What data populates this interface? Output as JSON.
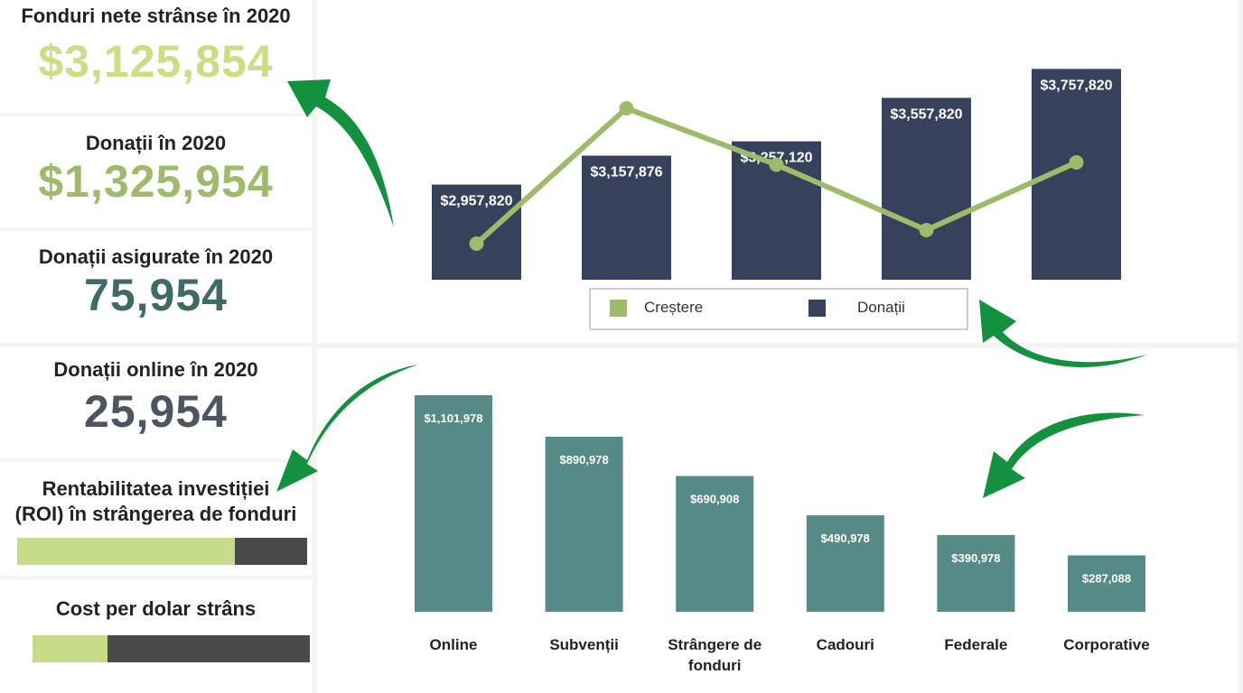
{
  "kpis": {
    "net_funds": {
      "title": "Fonduri nete strânse în 2020",
      "value": "$3,125,854",
      "color": "#cfdc85"
    },
    "donations": {
      "title": "Donații în 2020",
      "value": "$1,325,954",
      "color": "#9dbb6a"
    },
    "secured": {
      "title": "Donații asigurate în 2020",
      "value": "75,954",
      "color": "#3f6b66"
    },
    "online": {
      "title": "Donații online în 2020",
      "value": "25,954",
      "color": "#4d5560"
    },
    "roi": {
      "title_line1": "Rentabilitatea investiției",
      "title_line2": "(ROI) în strângerea de fonduri",
      "fill_fraction": 0.75,
      "fill_color": "#c6dc8a",
      "rest_color": "#4a4a4a"
    },
    "cost": {
      "title": "Cost per dolar strâns",
      "fill_fraction": 0.27,
      "fill_color": "#c6dc8a",
      "rest_color": "#4a4a4a"
    }
  },
  "chart_data": [
    {
      "type": "bar",
      "categories": [
        "",
        "",
        "",
        "",
        ""
      ],
      "series": [
        {
          "name": "Donații",
          "values": [
            2957820,
            3157876,
            3257120,
            3557820,
            3757820
          ],
          "color": "#36425c",
          "labels": [
            "$2,957,820",
            "$3,157,876",
            "$3,257,120",
            "$3,557,820",
            "$3,757,820"
          ]
        },
        {
          "name": "Creștere",
          "type": "line",
          "values": [
            2,
            8,
            5.5,
            2.6,
            5.6
          ],
          "color": "#9dbb6a"
        }
      ],
      "legend": "bottom-center",
      "grid": false
    },
    {
      "type": "bar",
      "categories": [
        "Online",
        "Subvenții",
        "Strângere de fonduri",
        "Cadouri",
        "Federale",
        "Corporative"
      ],
      "values": [
        1101978,
        890978,
        690908,
        490978,
        390978,
        287088
      ],
      "labels": [
        "$1,101,978",
        "$890,978",
        "$690,908",
        "$490,978",
        "$390,978",
        "$287,088"
      ],
      "color": "#558a86",
      "grid": false
    }
  ]
}
